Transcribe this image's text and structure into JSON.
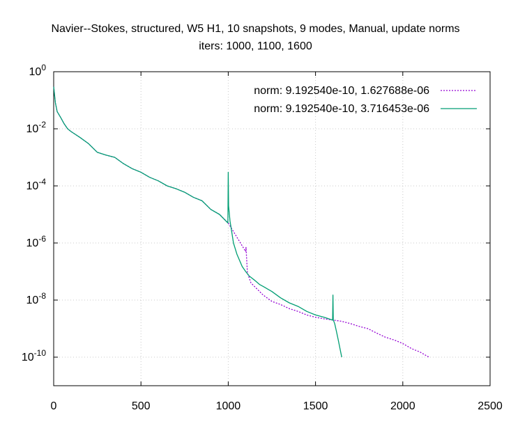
{
  "chart_data": {
    "type": "line",
    "title_line1": "Navier--Stokes, structured, W5 H1, 10 snapshots, 9 modes, Manual, update norms",
    "title_line2": "iters: 1000, 1100, 1600",
    "xlabel": "",
    "ylabel": "",
    "xlim": [
      0,
      2500
    ],
    "ylim": [
      1e-11,
      1
    ],
    "yscale": "log",
    "grid": true,
    "legend_position": "top-right",
    "x_ticks": [
      0,
      500,
      1000,
      1500,
      2000,
      2500
    ],
    "x_tick_labels": [
      "0",
      "500",
      "1000",
      "1500",
      "2000",
      "2500"
    ],
    "y_ticks": [
      1,
      0.01,
      0.0001,
      1e-06,
      1e-08,
      1e-10
    ],
    "y_tick_labels": [
      {
        "base": "10",
        "exp": "0"
      },
      {
        "base": "10",
        "exp": "-2"
      },
      {
        "base": "10",
        "exp": "-4"
      },
      {
        "base": "10",
        "exp": "-6"
      },
      {
        "base": "10",
        "exp": "-8"
      },
      {
        "base": "10",
        "exp": "-10"
      }
    ],
    "series": [
      {
        "name": "norm: 9.192540e-10, 1.627688e-06",
        "color": "#9400d3",
        "dash": "dotted",
        "x": [
          0,
          10,
          20,
          40,
          60,
          80,
          100,
          150,
          200,
          250,
          300,
          350,
          400,
          450,
          500,
          550,
          600,
          650,
          700,
          750,
          800,
          850,
          900,
          950,
          1000,
          1100,
          1102,
          1110,
          1130,
          1150,
          1200,
          1250,
          1300,
          1350,
          1400,
          1450,
          1500,
          1550,
          1600,
          1650,
          1700,
          1750,
          1800,
          1850,
          1900,
          1950,
          2000,
          2050,
          2100,
          2150
        ],
        "y": [
          0.3,
          0.08,
          0.04,
          0.025,
          0.015,
          0.01,
          0.008,
          0.005,
          0.003,
          0.0015,
          0.0012,
          0.001,
          0.0006,
          0.0004,
          0.0003,
          0.0002,
          0.00015,
          0.0001,
          8e-05,
          6e-05,
          4e-05,
          3e-05,
          1.5e-05,
          1e-05,
          5e-06,
          5e-07,
          7e-07,
          9e-08,
          4e-08,
          3e-08,
          1.5e-08,
          9e-09,
          7e-09,
          5e-09,
          4e-09,
          3e-09,
          2.5e-09,
          2.2e-09,
          2e-09,
          1.8e-09,
          1.5e-09,
          1.2e-09,
          1e-09,
          7e-10,
          5e-10,
          4e-10,
          3e-10,
          2e-10,
          1.5e-10,
          1e-10
        ]
      },
      {
        "name": "norm: 9.192540e-10, 3.716453e-06",
        "color": "#009e73",
        "dash": "solid",
        "x": [
          0,
          10,
          20,
          40,
          60,
          80,
          100,
          150,
          200,
          250,
          300,
          350,
          400,
          450,
          500,
          550,
          600,
          650,
          700,
          750,
          800,
          850,
          900,
          950,
          998,
          1000,
          1002,
          1010,
          1030,
          1050,
          1080,
          1100,
          1120,
          1150,
          1180,
          1200,
          1250,
          1300,
          1350,
          1400,
          1450,
          1500,
          1550,
          1598,
          1600,
          1602,
          1610,
          1620,
          1630,
          1640,
          1650
        ],
        "y": [
          0.3,
          0.08,
          0.04,
          0.025,
          0.015,
          0.01,
          0.008,
          0.005,
          0.003,
          0.0015,
          0.0012,
          0.001,
          0.0006,
          0.0004,
          0.0003,
          0.0002,
          0.00015,
          0.0001,
          8e-05,
          6e-05,
          4e-05,
          3e-05,
          1.5e-05,
          1e-05,
          5e-06,
          0.0003,
          2e-05,
          6e-06,
          1e-06,
          4e-07,
          1.5e-07,
          1e-07,
          7e-08,
          5e-08,
          3.5e-08,
          3e-08,
          2e-08,
          1.2e-08,
          8e-09,
          6e-09,
          4e-09,
          3e-09,
          2.5e-09,
          2e-09,
          1.5e-08,
          2e-09,
          1.5e-09,
          8e-10,
          4e-10,
          2e-10,
          1e-10
        ]
      }
    ]
  }
}
